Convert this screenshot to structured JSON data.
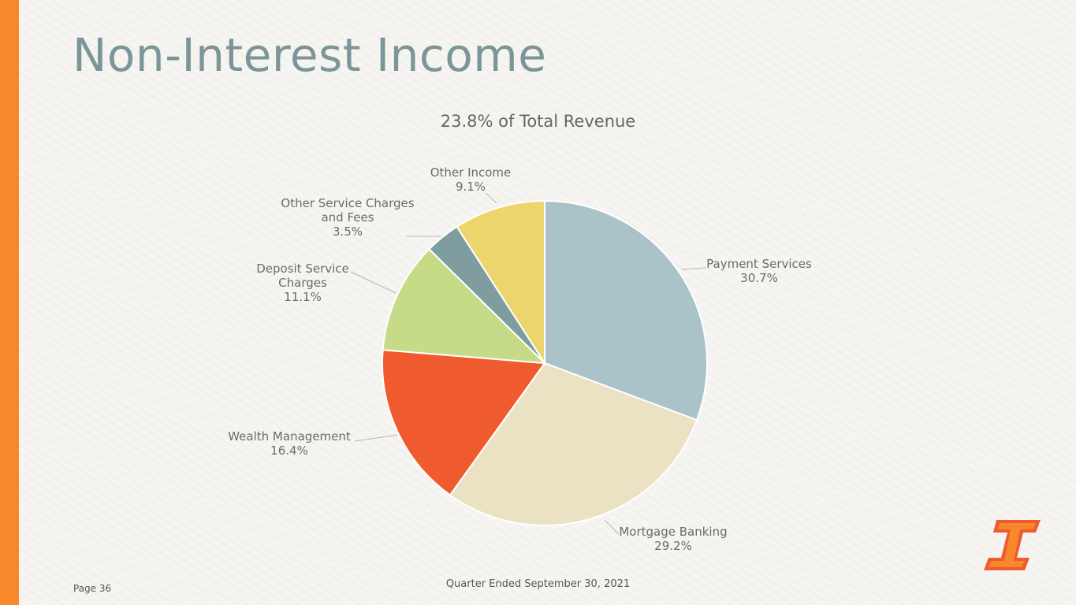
{
  "slide": {
    "title": "Non-Interest Income",
    "page_label": "Page 36",
    "footer_date": "Quarter Ended September 30, 2021",
    "accent_color": "#f7892c",
    "logo_icon": "brand-logo-icon"
  },
  "chart_data": {
    "type": "pie",
    "title": "23.8% of Total Revenue",
    "slices": [
      {
        "label": [
          "Payment Services"
        ],
        "value_label": "30.7%",
        "value": 30.7,
        "color": "#a9c3c9"
      },
      {
        "label": [
          "Mortgage Banking"
        ],
        "value_label": "29.2%",
        "value": 29.2,
        "color": "#ebe1c3"
      },
      {
        "label": [
          "Wealth Management"
        ],
        "value_label": "16.4%",
        "value": 16.4,
        "color": "#f05a2f"
      },
      {
        "label": [
          "Deposit Service",
          "Charges"
        ],
        "value_label": "11.1%",
        "value": 11.1,
        "color": "#c6db87"
      },
      {
        "label": [
          "Other Service Charges",
          "and Fees"
        ],
        "value_label": "3.5%",
        "value": 3.5,
        "color": "#7f9c9f"
      },
      {
        "label": [
          "Other Income"
        ],
        "value_label": "9.1%",
        "value": 9.1,
        "color": "#edd56d"
      }
    ]
  }
}
